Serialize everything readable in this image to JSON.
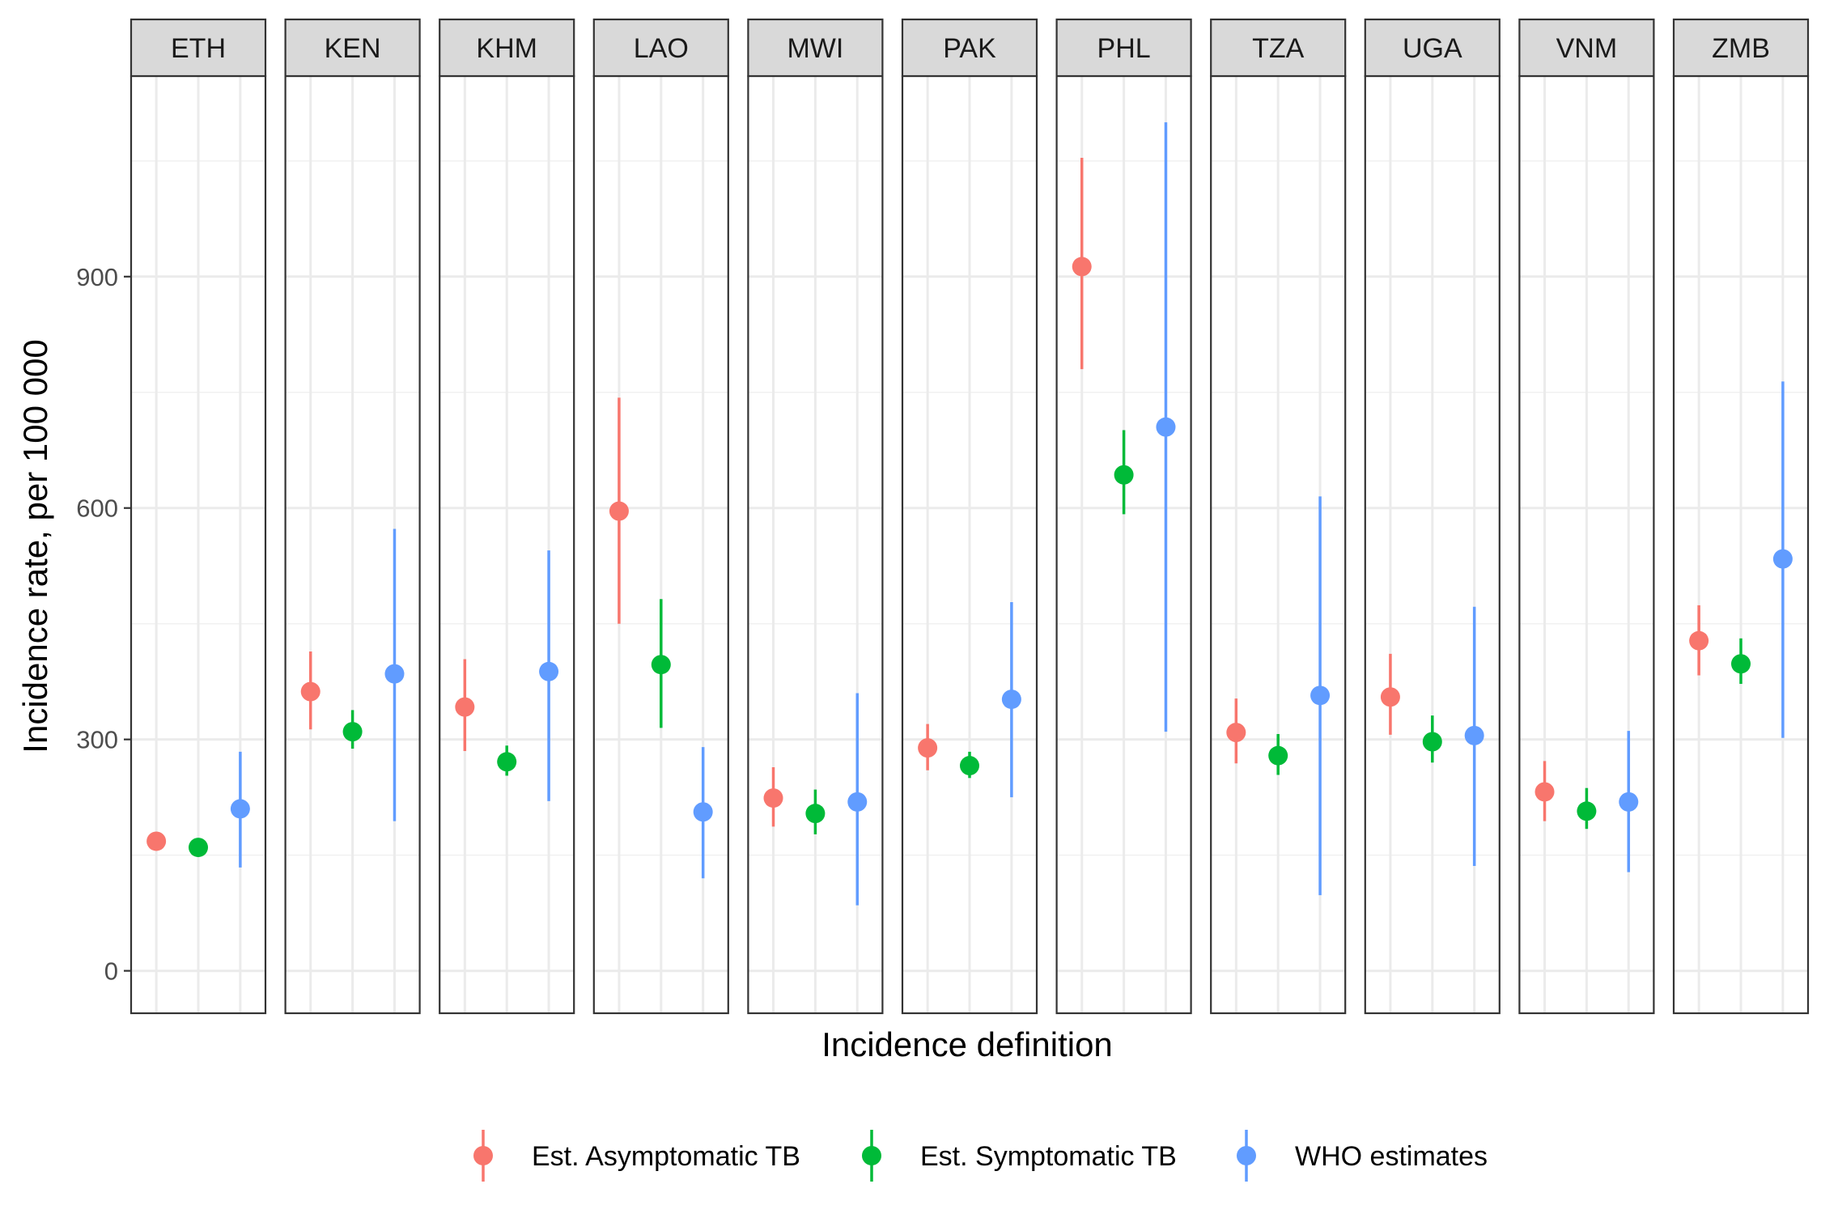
{
  "chart_data": {
    "type": "scatter",
    "subtype": "pointrange-faceted",
    "title": "",
    "xlabel": "Incidence definition",
    "ylabel": "Incidence rate, per 100 000",
    "ylim": [
      -55,
      1160
    ],
    "yticks": [
      0,
      300,
      600,
      900
    ],
    "ytick_labels": [
      "0",
      "300",
      "600",
      "900"
    ],
    "grid": true,
    "legend_position": "bottom",
    "facets": [
      "ETH",
      "KEN",
      "KHM",
      "LAO",
      "MWI",
      "PAK",
      "PHL",
      "TZA",
      "UGA",
      "VNM",
      "ZMB"
    ],
    "categories": [
      "Est. Asymptomatic TB",
      "Est. Symptomatic TB",
      "WHO estimates"
    ],
    "series": [
      {
        "name": "Est. Asymptomatic TB",
        "color": "#F8766D",
        "values": [
          168,
          362,
          342,
          596,
          224,
          289,
          913,
          309,
          355,
          232,
          428
        ],
        "lower": [
          null,
          313,
          285,
          450,
          187,
          260,
          780,
          269,
          306,
          194,
          383
        ],
        "upper": [
          null,
          414,
          404,
          743,
          264,
          320,
          1054,
          353,
          411,
          272,
          474
        ]
      },
      {
        "name": "Est. Symptomatic TB",
        "color": "#00BA38",
        "values": [
          160,
          310,
          271,
          397,
          204,
          266,
          643,
          279,
          297,
          207,
          398
        ],
        "lower": [
          null,
          288,
          253,
          315,
          177,
          250,
          592,
          254,
          270,
          184,
          372
        ],
        "upper": [
          null,
          338,
          292,
          482,
          235,
          284,
          701,
          307,
          331,
          237,
          431
        ]
      },
      {
        "name": "WHO estimates",
        "color": "#619CFF",
        "values": [
          210,
          385,
          388,
          206,
          219,
          352,
          705,
          357,
          305,
          219,
          534
        ],
        "lower": [
          134,
          194,
          220,
          120,
          85,
          225,
          310,
          98,
          136,
          128,
          302
        ],
        "upper": [
          284,
          573,
          545,
          290,
          360,
          478,
          1100,
          615,
          472,
          311,
          764
        ]
      }
    ]
  }
}
